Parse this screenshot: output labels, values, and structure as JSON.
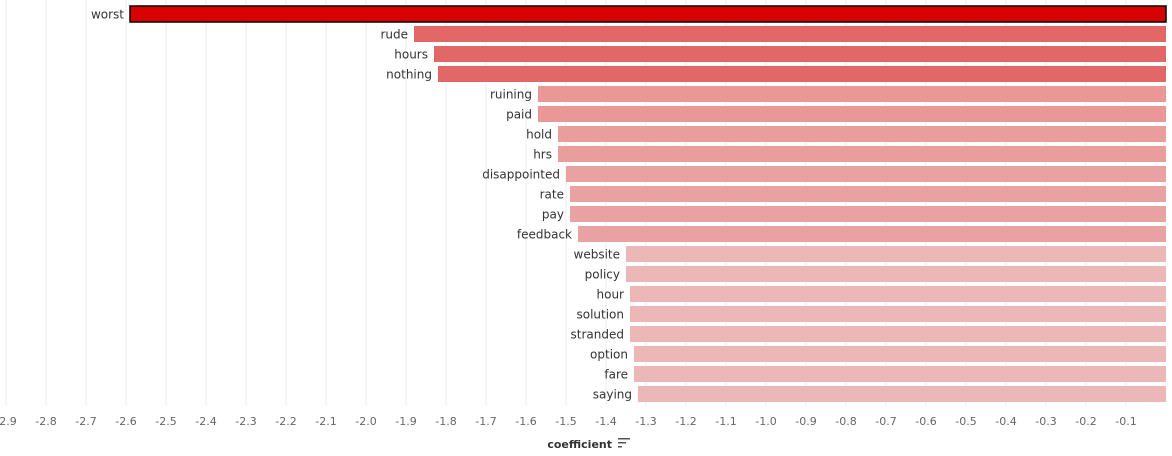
{
  "chart_data": {
    "type": "bar",
    "orientation": "horizontal",
    "xlabel": "coefficient",
    "xlim": [
      -2.92,
      0
    ],
    "ticks": [
      "-2.9",
      "-2.8",
      "-2.7",
      "-2.6",
      "-2.5",
      "-2.4",
      "-2.3",
      "-2.2",
      "-2.1",
      "-2.0",
      "-1.9",
      "-1.8",
      "-1.7",
      "-1.6",
      "-1.5",
      "-1.4",
      "-1.3",
      "-1.2",
      "-1.1",
      "-1.0",
      "-0.9",
      "-0.8",
      "-0.7",
      "-0.6",
      "-0.5",
      "-0.4",
      "-0.3",
      "-0.2",
      "-0.1"
    ],
    "grid": true,
    "sort_icon": "sort-descending-icon",
    "categories": [
      "worst",
      "rude",
      "hours",
      "nothing",
      "ruining",
      "paid",
      "hold",
      "hrs",
      "disappointed",
      "rate",
      "pay",
      "feedback",
      "website",
      "policy",
      "hour",
      "solution",
      "stranded",
      "option",
      "fare",
      "saying"
    ],
    "values": [
      -2.59,
      -1.88,
      -1.83,
      -1.82,
      -1.57,
      -1.57,
      -1.52,
      -1.52,
      -1.5,
      -1.49,
      -1.49,
      -1.47,
      -1.35,
      -1.35,
      -1.34,
      -1.34,
      -1.34,
      -1.33,
      -1.33,
      -1.32
    ],
    "colors": [
      "#d90000",
      "#e26767",
      "#e26767",
      "#e26767",
      "#e99797",
      "#e99797",
      "#e99d9d",
      "#e99d9d",
      "#e9a1a1",
      "#e9a1a1",
      "#e9a1a1",
      "#e9a1a1",
      "#ecb7b7",
      "#ecb7b7",
      "#ecb7b7",
      "#ecb7b7",
      "#ecb7b7",
      "#ecb7b7",
      "#ecb7b7",
      "#ecb7b7"
    ],
    "highlight_border": "#000000"
  }
}
